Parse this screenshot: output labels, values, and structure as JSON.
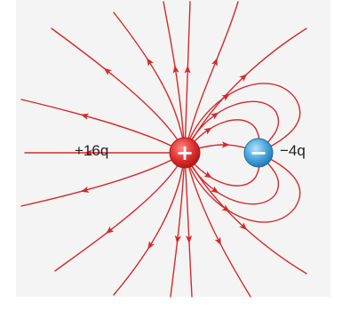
{
  "diagram": {
    "positive_charge": {
      "sign": "+",
      "label": "+16q",
      "color": "#e03232"
    },
    "negative_charge": {
      "sign": "−",
      "label": "−4q",
      "color": "#3f9fd8"
    },
    "field_line_color": "#d42b2b"
  }
}
